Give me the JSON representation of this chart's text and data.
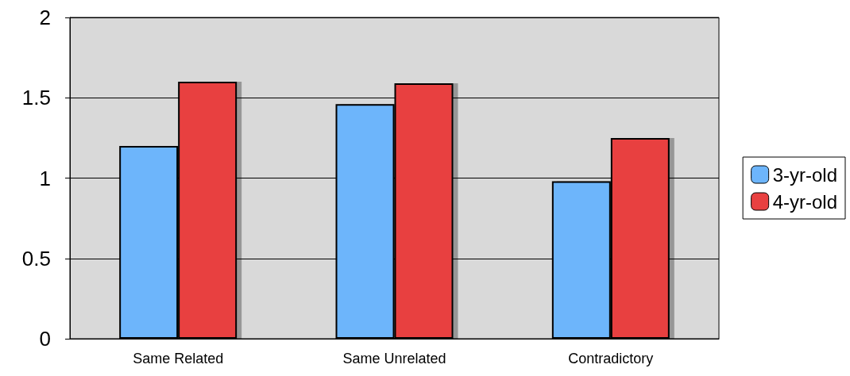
{
  "chart_data": {
    "type": "bar",
    "categories": [
      "Same Related",
      "Same Unrelated",
      "Contradictory"
    ],
    "series": [
      {
        "name": "3-yr-old",
        "color": "#6db5fb",
        "values": [
          1.2,
          1.46,
          0.98
        ]
      },
      {
        "name": "4-yr-old",
        "color": "#e84141",
        "values": [
          1.6,
          1.59,
          1.25
        ]
      }
    ],
    "ylim": [
      0,
      2
    ],
    "yticks": [
      0,
      0.5,
      1,
      1.5,
      2
    ],
    "grid": "y",
    "legend": "right"
  }
}
